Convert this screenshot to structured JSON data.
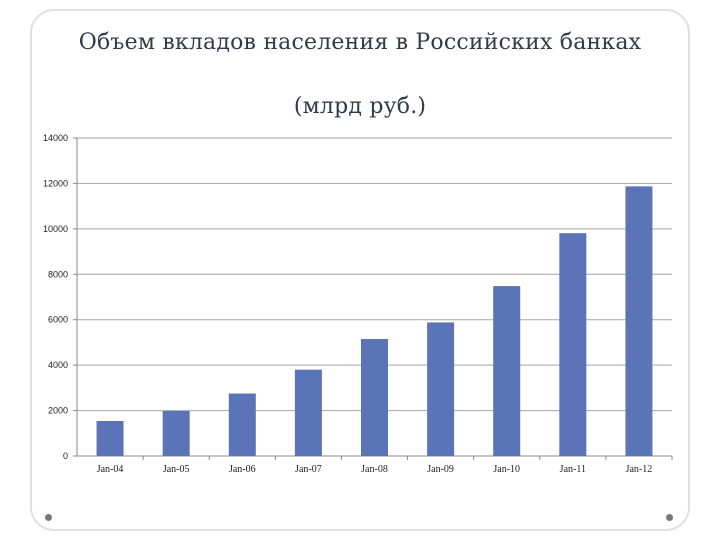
{
  "slide": {
    "title_line1": "Объем вкладов населения в Российских банках",
    "title_line2": "(млрд руб.)"
  },
  "chart_data": {
    "type": "bar",
    "categories": [
      "Jan-04",
      "Jan-05",
      "Jan-06",
      "Jan-07",
      "Jan-08",
      "Jan-09",
      "Jan-10",
      "Jan-11",
      "Jan-12"
    ],
    "values": [
      1540,
      1980,
      2750,
      3800,
      5150,
      5880,
      7480,
      9810,
      11870
    ],
    "yticks": [
      0,
      2000,
      4000,
      6000,
      8000,
      10000,
      12000,
      14000
    ],
    "ylim": [
      0,
      14000
    ],
    "grid": true,
    "colors": {
      "bar": "#5b74b7",
      "grid": "#a6a6a6",
      "axis": "#888888"
    }
  }
}
